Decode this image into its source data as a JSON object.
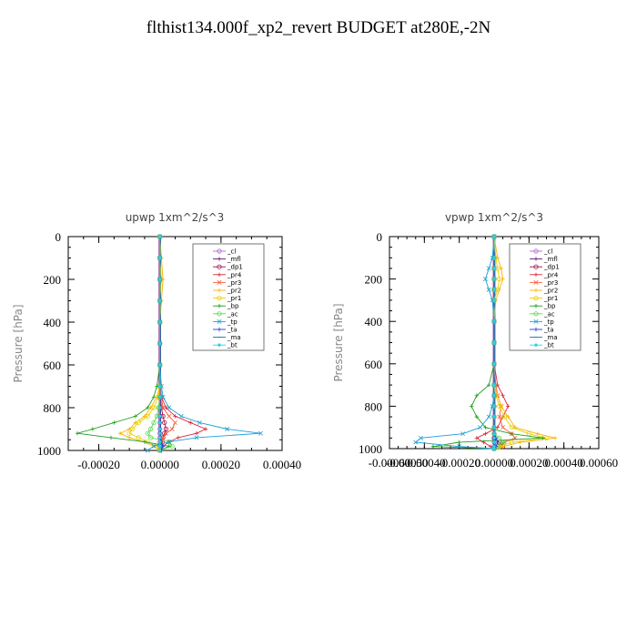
{
  "page_title": "flthist134.000f_xp2_revert  BUDGET at280E,-2N",
  "legend_entries": [
    "_cl",
    "_mfl",
    "_dp1",
    "_pr4",
    "_pr3",
    "_pr2",
    "_pr1",
    "_bp",
    "_ac",
    "_tp",
    "_ta",
    "_ma",
    "_bt"
  ],
  "series_colors": [
    "#b36bd9",
    "#5a1a7a",
    "#a3124f",
    "#d9263b",
    "#ff5a3a",
    "#ffb000",
    "#e6d000",
    "#1f9e1f",
    "#5ad94a",
    "#1f9ed9",
    "#1f3fd9",
    "#1f6f9e",
    "#28d0f0"
  ],
  "chart_data": [
    {
      "type": "line",
      "title": "upwp   1xm^2/s^3",
      "ylabel": "Pressure [hPa]",
      "xlim": [
        -0.0003,
        0.0004
      ],
      "ylim": [
        1000,
        0
      ],
      "xticks": [
        "-0.00020",
        "0.00000",
        "0.00020",
        "0.00040"
      ],
      "xtick_values": [
        -0.0002,
        0.0,
        0.0002,
        0.0004
      ],
      "yticks": [
        "0",
        "200",
        "400",
        "600",
        "800",
        "1000"
      ],
      "ytick_values": [
        0,
        200,
        400,
        600,
        800,
        1000
      ],
      "pressure": [
        0,
        100,
        200,
        300,
        400,
        500,
        600,
        700,
        750,
        800,
        840,
        870,
        900,
        920,
        940,
        960,
        980,
        1000
      ],
      "series": [
        {
          "name": "_cl",
          "values": [
            0,
            0,
            0,
            0,
            0,
            0,
            0,
            0,
            0,
            0,
            0,
            0,
            0,
            0,
            0,
            0,
            0,
            0
          ]
        },
        {
          "name": "_mfl",
          "values": [
            0,
            0,
            0,
            0,
            0,
            0,
            0,
            0,
            0,
            0,
            0,
            0,
            0,
            0,
            0,
            0,
            0,
            0
          ]
        },
        {
          "name": "_dp1",
          "values": [
            0,
            0,
            0,
            0,
            0,
            0,
            0,
            0,
            2e-06,
            5e-06,
            1e-05,
            1.5e-05,
            2e-05,
            1.5e-05,
            1e-05,
            8e-06,
            5e-06,
            0
          ]
        },
        {
          "name": "_pr4",
          "values": [
            0,
            0,
            0,
            0,
            0,
            0,
            0,
            2e-06,
            5e-06,
            2e-05,
            5e-05,
            0.0001,
            0.00015,
            0.00012,
            6e-05,
            3e-05,
            1e-05,
            0
          ]
        },
        {
          "name": "_pr3",
          "values": [
            0,
            0,
            0,
            0,
            0,
            0,
            0,
            0,
            5e-06,
            1e-05,
            3e-05,
            5e-05,
            4e-05,
            2e-05,
            1e-05,
            5e-06,
            2e-06,
            0
          ]
        },
        {
          "name": "_pr2",
          "values": [
            0,
            5e-06,
            1e-05,
            5e-06,
            0,
            0,
            0,
            0,
            -1e-05,
            -3e-05,
            -5e-05,
            -8e-05,
            -0.0001,
            -0.00013,
            -0.0001,
            -5e-05,
            -2e-05,
            0
          ]
        },
        {
          "name": "_pr1",
          "values": [
            0,
            0,
            5e-06,
            0,
            0,
            0,
            0,
            0,
            -5e-06,
            -2e-05,
            -4e-05,
            -7e-05,
            -9e-05,
            -0.0001,
            -7e-05,
            -4e-05,
            -1e-05,
            0
          ]
        },
        {
          "name": "_bp",
          "values": [
            0,
            0,
            0,
            0,
            0,
            0,
            0,
            -1e-05,
            -2e-05,
            -4e-05,
            -8e-05,
            -0.00015,
            -0.00022,
            -0.00027,
            -0.00016,
            -5e-05,
            3e-05,
            0
          ]
        },
        {
          "name": "_ac",
          "values": [
            0,
            0,
            0,
            0,
            0,
            0,
            0,
            0,
            0,
            -5e-06,
            -1e-05,
            -2e-05,
            -3e-05,
            -4e-05,
            -3e-05,
            3e-05,
            4e-05,
            0
          ]
        },
        {
          "name": "_tp",
          "values": [
            0,
            0,
            0,
            0,
            0,
            0,
            0,
            5e-06,
            1e-05,
            3e-05,
            7e-05,
            0.00013,
            0.00022,
            0.00033,
            0.00012,
            3e-05,
            -2e-05,
            -4e-05
          ]
        },
        {
          "name": "_ta",
          "values": [
            0,
            0,
            0,
            0,
            0,
            0,
            0,
            0,
            0,
            0,
            0,
            0,
            0,
            0,
            0,
            5e-06,
            1e-05,
            5e-06
          ]
        },
        {
          "name": "_ma",
          "values": [
            0,
            0,
            0,
            0,
            0,
            0,
            0,
            0,
            0,
            0,
            0,
            0,
            0,
            0,
            0,
            0,
            0,
            0
          ]
        },
        {
          "name": "_bt",
          "values": [
            0,
            0,
            0,
            0,
            0,
            0,
            0,
            0,
            0,
            0,
            0,
            0,
            0,
            0,
            0,
            0,
            0,
            0
          ]
        }
      ]
    },
    {
      "type": "line",
      "title": "vpwp   1xm^2/s^3",
      "ylabel": "Pressure [hPa]",
      "xlim": [
        -0.0006,
        0.0006
      ],
      "ylim": [
        1000,
        0
      ],
      "xticks": [
        "-0.00060",
        "-0.00040",
        "-0.00020",
        "0.00000",
        "0.00020",
        "0.00040",
        "0.00060"
      ],
      "xtick_values": [
        -0.0006,
        -0.0004,
        -0.0002,
        0.0,
        0.0002,
        0.0004,
        0.0006
      ],
      "xtick_overlap_label": "-0.00050",
      "xtick_overlap_value": -0.0005,
      "yticks": [
        "0",
        "200",
        "400",
        "600",
        "800",
        "1000"
      ],
      "ytick_values": [
        0,
        200,
        400,
        600,
        800,
        1000
      ],
      "pressure": [
        0,
        100,
        150,
        200,
        250,
        300,
        400,
        500,
        600,
        700,
        750,
        800,
        850,
        900,
        930,
        950,
        970,
        990,
        1000
      ],
      "series": [
        {
          "name": "_cl",
          "values": [
            0,
            0,
            0,
            0,
            0,
            0,
            0,
            0,
            0,
            0,
            0,
            0,
            0,
            0,
            0,
            0,
            0,
            0,
            0
          ]
        },
        {
          "name": "_mfl",
          "values": [
            0,
            0,
            0,
            0,
            0,
            0,
            0,
            0,
            0,
            0,
            0,
            0,
            0,
            0,
            0,
            0,
            0,
            0,
            0
          ]
        },
        {
          "name": "_dp1",
          "values": [
            0,
            0,
            0,
            0,
            0,
            0,
            0,
            0,
            0,
            0,
            0,
            0,
            0,
            0,
            0,
            0,
            3e-05,
            5e-05,
            0
          ]
        },
        {
          "name": "_pr4",
          "values": [
            0,
            0,
            0,
            0,
            0,
            0,
            0,
            0,
            0,
            2e-05,
            5e-05,
            8e-05,
            5e-05,
            2e-05,
            -5e-05,
            -0.0001,
            -6e-05,
            -2e-05,
            0
          ]
        },
        {
          "name": "_pr3",
          "values": [
            0,
            0,
            0,
            0,
            0,
            0,
            0,
            0,
            0,
            1e-05,
            2e-05,
            4e-05,
            3e-05,
            5e-05,
            0.0001,
            0.00012,
            6e-05,
            2e-05,
            0
          ]
        },
        {
          "name": "_pr2",
          "values": [
            0,
            2e-05,
            4e-05,
            5e-05,
            3e-05,
            1e-05,
            0,
            0,
            0,
            0,
            2e-05,
            4e-05,
            8e-05,
            0.00012,
            0.00025,
            0.00035,
            0.00015,
            5e-05,
            0
          ]
        },
        {
          "name": "_pr1",
          "values": [
            0,
            1e-05,
            2e-05,
            3e-05,
            2e-05,
            0,
            0,
            0,
            0,
            0,
            1e-05,
            3e-05,
            6e-05,
            0.0001,
            0.0002,
            0.0003,
            0.0001,
            3e-05,
            0
          ]
        },
        {
          "name": "_bp",
          "values": [
            0,
            0,
            0,
            0,
            0,
            0,
            0,
            0,
            0,
            -3e-05,
            -0.0001,
            -0.00013,
            -0.0001,
            -5e-05,
            0.0001,
            0.00028,
            -0.0002,
            -0.00035,
            0
          ]
        },
        {
          "name": "_ac",
          "values": [
            0,
            0,
            0,
            0,
            0,
            0,
            0,
            0,
            0,
            0,
            0,
            0,
            0,
            0,
            0,
            3e-05,
            5e-05,
            2e-05,
            0
          ]
        },
        {
          "name": "_tp",
          "values": [
            0,
            -1e-05,
            -3e-05,
            -5e-05,
            -3e-05,
            -1e-05,
            0,
            0,
            0,
            0,
            0,
            -1e-05,
            -3e-05,
            -8e-05,
            -0.00018,
            -0.00042,
            -0.00045,
            -0.0002,
            0
          ]
        },
        {
          "name": "_ta",
          "values": [
            0,
            0,
            0,
            0,
            0,
            0,
            0,
            0,
            0,
            0,
            0,
            0,
            0,
            0,
            0,
            1e-05,
            2e-05,
            1e-05,
            0
          ]
        },
        {
          "name": "_ma",
          "values": [
            0,
            0,
            0,
            0,
            0,
            0,
            0,
            0,
            0,
            0,
            0,
            0,
            0,
            0,
            0,
            0,
            0,
            0,
            0
          ]
        },
        {
          "name": "_bt",
          "values": [
            0,
            0,
            0,
            0,
            0,
            0,
            0,
            0,
            0,
            0,
            0,
            0,
            0,
            0,
            0,
            0,
            0,
            0,
            0
          ]
        }
      ]
    }
  ]
}
